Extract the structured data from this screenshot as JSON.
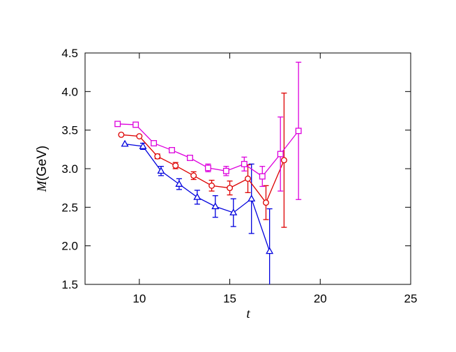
{
  "chart_data": {
    "type": "line",
    "xlabel": "t",
    "ylabel": {
      "symbol": "M",
      "unit": "(GeV)"
    },
    "xlim": [
      7,
      25
    ],
    "ylim": [
      1.5,
      4.5
    ],
    "xticks": [
      10,
      15,
      20,
      25
    ],
    "xtick_labels": [
      "10",
      "15",
      "20",
      "25"
    ],
    "yticks": [
      1.5,
      2.0,
      2.5,
      3.0,
      3.5,
      4.0,
      4.5
    ],
    "ytick_labels": [
      "1.5",
      "2.0",
      "2.5",
      "3.0",
      "3.5",
      "4.0",
      "4.5"
    ],
    "grid": false,
    "series": [
      {
        "marker": "triangle",
        "color": "#0000dd",
        "x": [
          9.2,
          10.2,
          11.2,
          12.2,
          13.2,
          14.2,
          15.2,
          16.2,
          17.2
        ],
        "y": [
          3.32,
          3.29,
          2.97,
          2.8,
          2.63,
          2.51,
          2.43,
          2.61,
          1.93
        ],
        "err": [
          0.0,
          0.04,
          0.06,
          0.07,
          0.09,
          0.14,
          0.18,
          0.45,
          0.55
        ]
      },
      {
        "marker": "circle",
        "color": "#dd0000",
        "x": [
          9.0,
          10.0,
          11.0,
          12.0,
          13.0,
          14.0,
          15.0,
          16.0,
          17.0,
          18.0
        ],
        "y": [
          3.44,
          3.42,
          3.16,
          3.04,
          2.91,
          2.78,
          2.75,
          2.87,
          2.56,
          3.11
        ],
        "err": [
          0.0,
          0.0,
          0.03,
          0.04,
          0.05,
          0.07,
          0.09,
          0.18,
          0.22,
          0.87
        ]
      },
      {
        "marker": "square",
        "color": "#dd00dd",
        "x": [
          8.8,
          9.8,
          10.8,
          11.8,
          12.8,
          13.8,
          14.8,
          15.8,
          16.8,
          17.8,
          18.8
        ],
        "y": [
          3.58,
          3.57,
          3.33,
          3.24,
          3.14,
          3.01,
          2.97,
          3.06,
          2.9,
          3.19,
          3.49
        ],
        "err": [
          0.0,
          0.0,
          0.02,
          0.03,
          0.03,
          0.05,
          0.06,
          0.09,
          0.13,
          0.48,
          0.89
        ]
      }
    ]
  }
}
